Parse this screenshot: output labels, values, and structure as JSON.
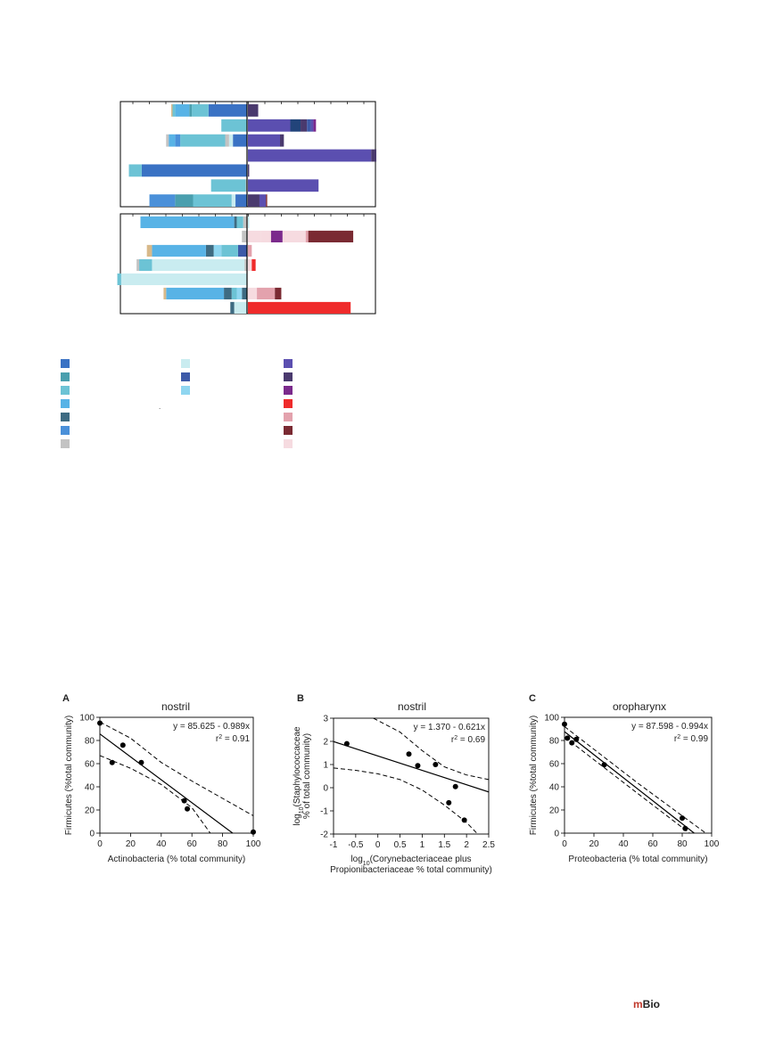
{
  "colors": {
    "c_blue_dark": "#3a72c4",
    "c_teal": "#4a9fae",
    "c_sky": "#6cc3d5",
    "c_light_blue": "#58b3e6",
    "c_slate": "#3e6b82",
    "c_mid_blue": "#4a90d9",
    "c_gray": "#c3c3c3",
    "c_pale_cyan": "#c9ecf0",
    "c_indigo": "#3d5aa8",
    "c_pale_sky": "#8fd6f0",
    "c_purple": "#5b4fb0",
    "c_plum_dark": "#4a3a6e",
    "c_violet": "#7b2a8c",
    "c_red": "#ef2b2b",
    "c_pink": "#e3a2ad",
    "c_maroon": "#7a2a32",
    "c_pale_pink": "#f6dbe0",
    "c_tan": "#d8b98a",
    "c_navy": "#22447a"
  },
  "legend": {
    "col1": [
      "c_blue_dark",
      "c_teal",
      "c_sky",
      "c_light_blue",
      "c_slate",
      "c_mid_blue",
      "c_gray"
    ],
    "col2": [
      "c_pale_cyan",
      "c_indigo",
      "c_pale_sky"
    ],
    "col3": [
      "c_purple",
      "c_plum_dark",
      "c_violet",
      "c_red",
      "c_pink",
      "c_maroon",
      "c_pale_pink"
    ]
  },
  "bar_panels": [
    {
      "rows": [
        {
          "left": [
            [
              "c_tan",
              1
            ],
            [
              "c_sky",
              2
            ],
            [
              "c_light_blue",
              11
            ],
            [
              "c_teal",
              2
            ],
            [
              "c_sky",
              13
            ],
            [
              "c_blue_dark",
              30
            ]
          ],
          "right": [
            [
              "c_plum_dark",
              8
            ]
          ]
        },
        {
          "left": [
            [
              "c_sky",
              20
            ]
          ],
          "right": [
            [
              "c_purple",
              33
            ],
            [
              "c_navy",
              8
            ],
            [
              "c_plum_dark",
              5
            ],
            [
              "c_indigo",
              3
            ],
            [
              "c_purple",
              2
            ],
            [
              "c_violet",
              2
            ]
          ]
        },
        {
          "left": [
            [
              "c_gray",
              2
            ],
            [
              "c_light_blue",
              5
            ],
            [
              "c_mid_blue",
              4
            ],
            [
              "c_sky",
              35
            ],
            [
              "c_gray",
              3
            ],
            [
              "c_pale_cyan",
              3
            ],
            [
              "c_blue_dark",
              11
            ]
          ],
          "right": [
            [
              "c_purple",
              25
            ],
            [
              "c_plum_dark",
              3
            ]
          ]
        },
        {
          "left": [],
          "right": [
            [
              "c_purple",
              96
            ],
            [
              "c_plum_dark",
              4
            ]
          ]
        },
        {
          "left": [
            [
              "c_sky",
              10
            ],
            [
              "c_blue_dark",
              82
            ]
          ],
          "right": [
            [
              "c_plum_dark",
              1
            ]
          ]
        },
        {
          "left": [
            [
              "c_sky",
              27
            ],
            [
              "c_gray",
              1
            ]
          ],
          "right": [
            [
              "c_purple",
              55
            ]
          ]
        },
        {
          "left": [
            [
              "c_mid_blue",
              20
            ],
            [
              "c_teal",
              14
            ],
            [
              "c_sky",
              30
            ],
            [
              "c_pale_cyan",
              3
            ],
            [
              "c_blue_dark",
              9
            ]
          ],
          "right": [
            [
              "c_plum_dark",
              9
            ],
            [
              "c_purple",
              5
            ],
            [
              "c_maroon",
              1
            ]
          ]
        }
      ]
    },
    {
      "rows": [
        {
          "left": [
            [
              "c_light_blue",
              73
            ],
            [
              "c_slate",
              2
            ],
            [
              "c_sky",
              5
            ],
            [
              "c_gray",
              3
            ]
          ],
          "right": [
            [
              "c_pale_cyan",
              1
            ]
          ]
        },
        {
          "left": [
            [
              "c_gray",
              4
            ]
          ],
          "right": [
            [
              "c_pale_pink",
              10
            ],
            [
              "c_pale_pink",
              8
            ],
            [
              "c_violet",
              9
            ],
            [
              "c_pale_pink",
              18
            ],
            [
              "c_pink",
              2
            ],
            [
              "c_maroon",
              35
            ]
          ]
        },
        {
          "left": [
            [
              "c_tan",
              4
            ],
            [
              "c_light_blue",
              42
            ],
            [
              "c_slate",
              6
            ],
            [
              "c_pale_sky",
              6
            ],
            [
              "c_sky",
              13
            ],
            [
              "c_indigo",
              7
            ]
          ],
          "right": [
            [
              "c_pink",
              3
            ]
          ]
        },
        {
          "left": [
            [
              "c_gray",
              2
            ],
            [
              "c_sky",
              10
            ],
            [
              "c_pale_cyan",
              72
            ],
            [
              "c_gray",
              2
            ]
          ],
          "right": [
            [
              "c_pale_pink",
              3
            ],
            [
              "c_red",
              3
            ]
          ]
        },
        {
          "left": [
            [
              "c_sky",
              3
            ],
            [
              "c_pale_cyan",
              98
            ]
          ],
          "right": []
        },
        {
          "left": [
            [
              "c_tan",
              2
            ],
            [
              "c_light_blue",
              45
            ],
            [
              "c_slate",
              6
            ],
            [
              "c_sky",
              4
            ],
            [
              "c_pale_sky",
              4
            ],
            [
              "c_slate",
              4
            ]
          ],
          "right": [
            [
              "c_pale_pink",
              7
            ],
            [
              "c_pink",
              14
            ],
            [
              "c_maroon",
              5
            ]
          ]
        },
        {
          "left": [
            [
              "c_slate",
              3
            ],
            [
              "c_pale_cyan",
              10
            ]
          ],
          "right": [
            [
              "c_red",
              80
            ]
          ]
        }
      ]
    }
  ],
  "small_mark": ".",
  "scatter_panels": [
    {
      "letter": "A",
      "title": "nostril",
      "xlabel": "Actinobacteria (% total community)",
      "ylabel": "Firmicutes (%total community)",
      "xticks": [
        "0",
        "20",
        "40",
        "60",
        "80",
        "100"
      ],
      "yticks": [
        "0",
        "20",
        "40",
        "60",
        "80",
        "100"
      ],
      "equation": "y = 85.625 - 0.989x",
      "r2_prefix": "r",
      "r2_sup": "2",
      "r2_value": " = 0.91",
      "chart_data": {
        "type": "scatter",
        "x": [
          0,
          8,
          15,
          27,
          55,
          57,
          100
        ],
        "y": [
          95,
          61,
          76,
          61,
          28,
          21,
          1
        ],
        "xlim": [
          0,
          100
        ],
        "ylim": [
          0,
          100
        ],
        "fit": {
          "intercept": 85.625,
          "slope": -0.989
        },
        "ci_upper": [
          [
            0,
            96
          ],
          [
            20,
            82
          ],
          [
            40,
            61
          ],
          [
            60,
            45
          ],
          [
            80,
            30
          ],
          [
            100,
            15
          ]
        ],
        "ci_lower": [
          [
            0,
            67
          ],
          [
            20,
            56
          ],
          [
            40,
            42
          ],
          [
            60,
            22
          ],
          [
            72,
            0
          ]
        ]
      }
    },
    {
      "letter": "B",
      "title": "nostril",
      "xlabel_line1_a": "log",
      "xlabel_line1_sub": "10",
      "xlabel_line1_b": "(Corynebacteriaceae plus",
      "xlabel_line2": "Propionibacteriaceae % total community)",
      "ylabel_line1_a": "log",
      "ylabel_line1_sub": "10",
      "ylabel_line1_b": "(Staphylococcaceae",
      "ylabel_line2": "% of total community)",
      "xticks": [
        "-1",
        "-0.5",
        "0",
        "0.5",
        "1",
        "1.5",
        "2",
        "2.5"
      ],
      "yticks": [
        "-2",
        "-1",
        "0",
        "1",
        "2",
        "3"
      ],
      "equation": "y = 1.370 - 0.621x",
      "r2_prefix": "r",
      "r2_sup": "2",
      "r2_value": " = 0.69",
      "chart_data": {
        "type": "scatter",
        "x": [
          -0.7,
          0.7,
          0.9,
          1.3,
          1.6,
          1.75,
          1.95
        ],
        "y": [
          1.9,
          1.45,
          0.95,
          1.0,
          -0.65,
          0.05,
          -1.4
        ],
        "xlim": [
          -1,
          2.5
        ],
        "ylim": [
          -2,
          3
        ],
        "fit": {
          "intercept": 1.37,
          "slope": -0.621
        },
        "ci_upper": [
          [
            -0.1,
            3.0
          ],
          [
            0.5,
            2.4
          ],
          [
            1.0,
            1.6
          ],
          [
            1.5,
            0.9
          ],
          [
            2.0,
            0.55
          ],
          [
            2.5,
            0.35
          ]
        ],
        "ci_lower": [
          [
            -1,
            0.85
          ],
          [
            -0.5,
            0.75
          ],
          [
            0,
            0.6
          ],
          [
            0.5,
            0.35
          ],
          [
            1.0,
            -0.1
          ],
          [
            1.5,
            -0.75
          ],
          [
            2.0,
            -1.5
          ],
          [
            2.25,
            -2.0
          ]
        ]
      }
    },
    {
      "letter": "C",
      "title": "oropharynx",
      "xlabel": "Proteobacteria (% total community)",
      "ylabel": "Firmicutes (%total community)",
      "xticks": [
        "0",
        "20",
        "40",
        "60",
        "80",
        "100"
      ],
      "yticks": [
        "0",
        "20",
        "40",
        "60",
        "80",
        "100"
      ],
      "equation": "y = 87.598 - 0.994x",
      "r2_prefix": "r",
      "r2_sup": "2",
      "r2_value": " = 0.99",
      "chart_data": {
        "type": "scatter",
        "x": [
          0,
          2,
          5,
          8,
          27,
          80,
          82
        ],
        "y": [
          94,
          82,
          78,
          81,
          59,
          13,
          4
        ],
        "xlim": [
          0,
          100
        ],
        "ylim": [
          0,
          100
        ],
        "fit": {
          "intercept": 87.598,
          "slope": -0.994
        },
        "ci_upper": [
          [
            0,
            92
          ],
          [
            50,
            43
          ],
          [
            96,
            0
          ]
        ],
        "ci_lower": [
          [
            0,
            83
          ],
          [
            50,
            34
          ],
          [
            85,
            0
          ]
        ]
      }
    }
  ],
  "logo": {
    "m": "m",
    "rest": "Bio"
  }
}
